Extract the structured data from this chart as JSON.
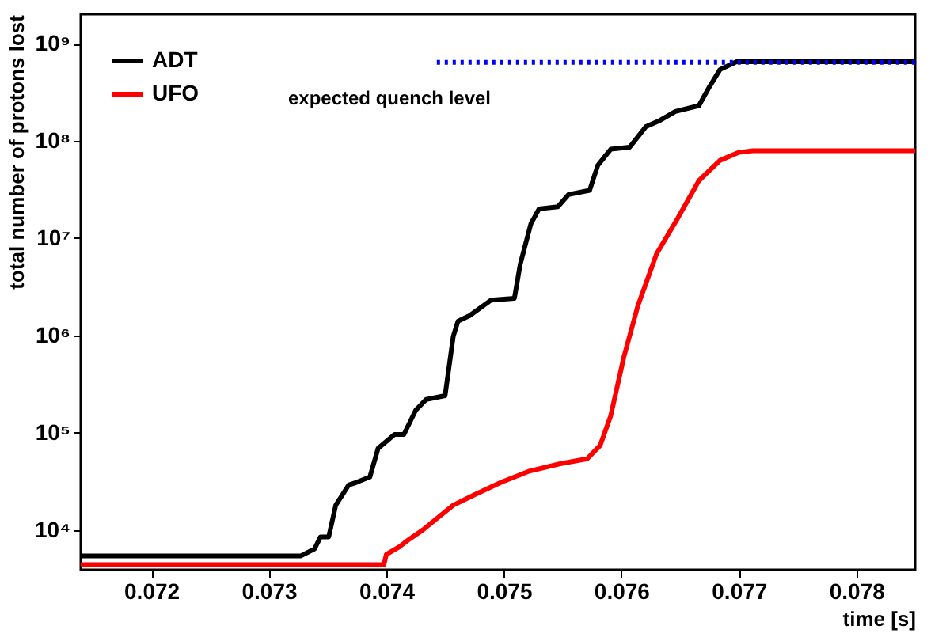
{
  "chart_data": {
    "type": "line",
    "xlabel": "time [s]",
    "ylabel": "total number of protons lost",
    "log": "y",
    "grid": false,
    "legend": "top left",
    "xlim": [
      0.0714,
      0.0785
    ],
    "xticks": [
      0.072,
      0.073,
      0.074,
      0.075,
      0.076,
      0.077,
      0.078
    ],
    "ylim": [
      3900,
      2000000000
    ],
    "yticks": [
      {
        "value": 10000,
        "label": "10⁴"
      },
      {
        "value": 100000,
        "label": "10⁵"
      },
      {
        "value": 1000000,
        "label": "10⁶"
      },
      {
        "value": 10000000,
        "label": "10⁷"
      },
      {
        "value": 100000000,
        "label": "10⁸"
      },
      {
        "value": 1000000000,
        "label": "10⁹"
      }
    ],
    "annotations": [
      "expected quench level"
    ],
    "series": [
      {
        "name": "ADT",
        "color": "#000000",
        "line_style": "solid",
        "x": [
          0.0714,
          0.07327,
          0.07339,
          0.07344,
          0.07351,
          0.07357,
          0.07368,
          0.07375,
          0.07386,
          0.07393,
          0.07407,
          0.07415,
          0.07425,
          0.07434,
          0.0745,
          0.07457,
          0.07461,
          0.07471,
          0.07489,
          0.07509,
          0.07514,
          0.07523,
          0.0753,
          0.07546,
          0.07555,
          0.07573,
          0.0758,
          0.07591,
          0.07607,
          0.07621,
          0.07632,
          0.07646,
          0.07666,
          0.07675,
          0.07684,
          0.07698,
          0.0785
        ],
        "values": [
          5400,
          5400,
          6400,
          8500,
          8500,
          18000,
          29000,
          31000,
          35000,
          69000,
          96000,
          96000,
          170000,
          220000,
          240000,
          980000,
          1400000,
          1600000,
          2300000,
          2400000,
          5400000,
          14000000,
          20000000,
          21000000,
          28000000,
          31000000,
          56000000,
          82000000,
          86000000,
          140000000,
          160000000,
          200000000,
          230000000,
          360000000,
          540000000,
          650000000,
          650000000
        ]
      },
      {
        "name": "UFO",
        "color": "#ff0000",
        "line_style": "solid",
        "x": [
          0.0714,
          0.07398,
          0.074,
          0.07411,
          0.0742,
          0.07431,
          0.07439,
          0.07457,
          0.07475,
          0.07498,
          0.07521,
          0.07548,
          0.07571,
          0.07582,
          0.07591,
          0.07602,
          0.07614,
          0.0763,
          0.07648,
          0.07666,
          0.07684,
          0.077,
          0.07712,
          0.0785
        ],
        "values": [
          4400,
          4400,
          5600,
          6700,
          8100,
          10000,
          12000,
          18000,
          23000,
          31000,
          40000,
          48000,
          54000,
          74000,
          150000,
          590000,
          2000000,
          6900000,
          16000000,
          39000000,
          63000000,
          76000000,
          79000000,
          79000000
        ]
      },
      {
        "color": "#0000ff",
        "line_style": "dotted",
        "x": [
          0.07443,
          0.0785
        ],
        "values": [
          640000000,
          640000000
        ]
      }
    ]
  }
}
